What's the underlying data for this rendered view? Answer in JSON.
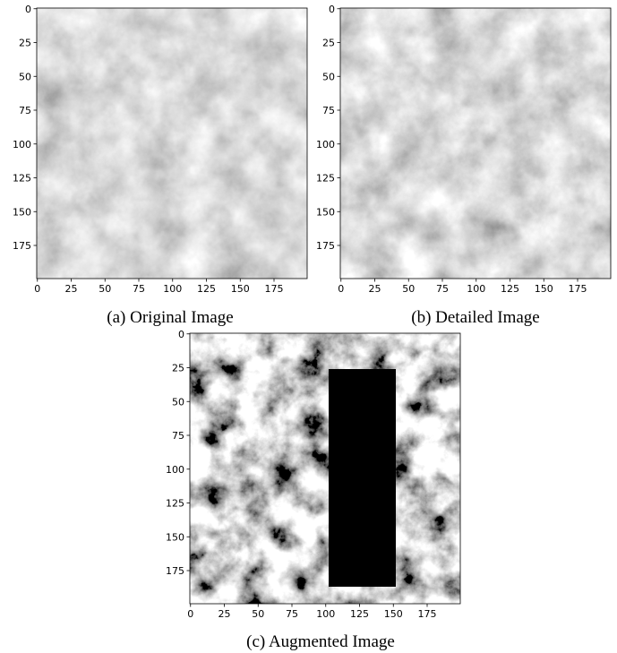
{
  "panels": [
    {
      "caption": "(a) Original Image",
      "xlim": [
        -0.5,
        199.5
      ],
      "ylim": [
        199.5,
        -0.5
      ],
      "xticks": [
        0,
        25,
        50,
        75,
        100,
        125,
        150,
        175
      ],
      "yticks": [
        0,
        25,
        50,
        75,
        100,
        125,
        150,
        175
      ]
    },
    {
      "caption": "(b) Detailed Image",
      "xlim": [
        -0.5,
        199.5
      ],
      "ylim": [
        199.5,
        -0.5
      ],
      "xticks": [
        0,
        25,
        50,
        75,
        100,
        125,
        150,
        175
      ],
      "yticks": [
        0,
        25,
        50,
        75,
        100,
        125,
        150,
        175
      ]
    },
    {
      "caption": "(c) Augmented Image",
      "xlim": [
        -0.5,
        199.5
      ],
      "ylim": [
        199.5,
        -0.5
      ],
      "xticks": [
        0,
        25,
        50,
        75,
        100,
        125,
        150,
        175
      ],
      "yticks": [
        0,
        25,
        50,
        75,
        100,
        125,
        150,
        175
      ]
    }
  ]
}
